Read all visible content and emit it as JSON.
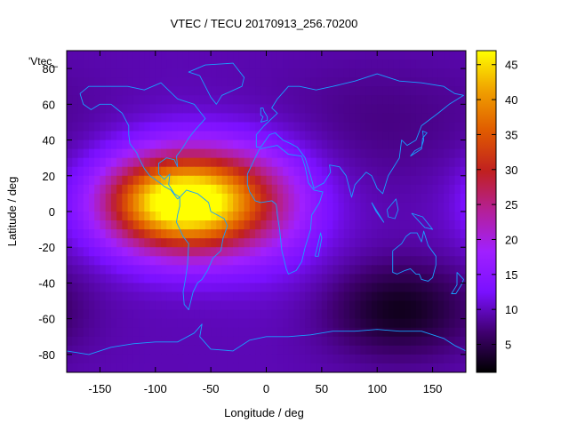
{
  "chart_data": {
    "type": "heatmap",
    "title": "VTEC / TECU 20170913_256.70200",
    "xlabel": "Longitude / deg",
    "ylabel": "Latitude / deg",
    "key_label": "'Vtec_",
    "xlim": [
      -180,
      180
    ],
    "ylim": [
      -90,
      90
    ],
    "x_ticks": [
      -150,
      -100,
      -50,
      0,
      50,
      100,
      150
    ],
    "y_ticks": [
      -80,
      -60,
      -40,
      -20,
      0,
      20,
      40,
      60,
      80
    ],
    "colorbar": {
      "min": 1,
      "max": 47,
      "ticks": [
        5,
        10,
        15,
        20,
        25,
        30,
        35,
        40,
        45
      ],
      "palette": [
        "#000000",
        "#400070",
        "#7a10ff",
        "#a020ff",
        "#b4209a",
        "#c02020",
        "#e05a00",
        "#f0a000",
        "#ffff00"
      ]
    },
    "grid": false,
    "z_field": {
      "background": 9.5,
      "sources": [
        {
          "lon": -70,
          "lat": 5,
          "amp": 36,
          "sigma_lon": 48,
          "sigma_lat": 20
        },
        {
          "lon": -110,
          "lat": 5,
          "amp": 8,
          "sigma_lon": 35,
          "sigma_lat": 16
        },
        {
          "lon": -20,
          "lat": 8,
          "amp": 6,
          "sigma_lon": 40,
          "sigma_lat": 20
        },
        {
          "lon": 15,
          "lat": 0,
          "amp": 3,
          "sigma_lon": 40,
          "sigma_lat": 30
        },
        {
          "lon": 120,
          "lat": -55,
          "amp": -7,
          "sigma_lon": 45,
          "sigma_lat": 18
        },
        {
          "lon": 100,
          "lat": 50,
          "amp": -2,
          "sigma_lon": 80,
          "sigma_lat": 25
        }
      ]
    },
    "coastlines": [
      {
        "name": "north-america",
        "lonlat": [
          [
            -168,
            66
          ],
          [
            -160,
            70
          ],
          [
            -140,
            70
          ],
          [
            -125,
            70
          ],
          [
            -110,
            68
          ],
          [
            -95,
            72
          ],
          [
            -80,
            63
          ],
          [
            -65,
            60
          ],
          [
            -55,
            52
          ],
          [
            -65,
            45
          ],
          [
            -70,
            41
          ],
          [
            -76,
            35
          ],
          [
            -81,
            31
          ],
          [
            -80,
            25
          ],
          [
            -83,
            29
          ],
          [
            -90,
            30
          ],
          [
            -97,
            27
          ],
          [
            -97,
            21
          ],
          [
            -92,
            18
          ],
          [
            -87,
            21
          ],
          [
            -88,
            15
          ],
          [
            -83,
            10
          ],
          [
            -78,
            8
          ],
          [
            -80,
            7
          ],
          [
            -86,
            12
          ],
          [
            -92,
            14
          ],
          [
            -96,
            16
          ],
          [
            -105,
            20
          ],
          [
            -110,
            24
          ],
          [
            -115,
            30
          ],
          [
            -117,
            33
          ],
          [
            -123,
            38
          ],
          [
            -124,
            43
          ],
          [
            -124,
            48
          ],
          [
            -130,
            55
          ],
          [
            -140,
            60
          ],
          [
            -150,
            60
          ],
          [
            -158,
            57
          ],
          [
            -165,
            60
          ],
          [
            -168,
            66
          ]
        ]
      },
      {
        "name": "greenland",
        "lonlat": [
          [
            -55,
            82
          ],
          [
            -30,
            83
          ],
          [
            -20,
            75
          ],
          [
            -22,
            70
          ],
          [
            -40,
            65
          ],
          [
            -45,
            60
          ],
          [
            -50,
            64
          ],
          [
            -55,
            70
          ],
          [
            -60,
            76
          ],
          [
            -70,
            78
          ],
          [
            -55,
            82
          ]
        ]
      },
      {
        "name": "south-america",
        "lonlat": [
          [
            -78,
            8
          ],
          [
            -72,
            12
          ],
          [
            -62,
            10
          ],
          [
            -52,
            5
          ],
          [
            -50,
            0
          ],
          [
            -38,
            -4
          ],
          [
            -35,
            -8
          ],
          [
            -39,
            -15
          ],
          [
            -41,
            -22
          ],
          [
            -48,
            -26
          ],
          [
            -53,
            -33
          ],
          [
            -58,
            -38
          ],
          [
            -62,
            -40
          ],
          [
            -66,
            -45
          ],
          [
            -68,
            -50
          ],
          [
            -70,
            -55
          ],
          [
            -74,
            -52
          ],
          [
            -75,
            -45
          ],
          [
            -73,
            -38
          ],
          [
            -71,
            -30
          ],
          [
            -70,
            -18
          ],
          [
            -75,
            -14
          ],
          [
            -81,
            -6
          ],
          [
            -80,
            -2
          ],
          [
            -78,
            3
          ],
          [
            -78,
            8
          ]
        ]
      },
      {
        "name": "eurasia",
        "lonlat": [
          [
            -9,
            36
          ],
          [
            -9,
            43
          ],
          [
            -2,
            48
          ],
          [
            5,
            52
          ],
          [
            10,
            55
          ],
          [
            5,
            58
          ],
          [
            10,
            63
          ],
          [
            20,
            70
          ],
          [
            30,
            70
          ],
          [
            45,
            68
          ],
          [
            60,
            70
          ],
          [
            80,
            73
          ],
          [
            100,
            77
          ],
          [
            120,
            73
          ],
          [
            140,
            72
          ],
          [
            160,
            70
          ],
          [
            170,
            66
          ],
          [
            178,
            65
          ],
          [
            165,
            60
          ],
          [
            155,
            55
          ],
          [
            140,
            48
          ],
          [
            135,
            40
          ],
          [
            127,
            37
          ],
          [
            122,
            40
          ],
          [
            120,
            30
          ],
          [
            110,
            20
          ],
          [
            105,
            10
          ],
          [
            100,
            13
          ],
          [
            98,
            16
          ],
          [
            95,
            20
          ],
          [
            90,
            22
          ],
          [
            80,
            15
          ],
          [
            77,
            8
          ],
          [
            72,
            20
          ],
          [
            66,
            25
          ],
          [
            57,
            26
          ],
          [
            58,
            22
          ],
          [
            52,
            16
          ],
          [
            43,
            13
          ],
          [
            40,
            20
          ],
          [
            35,
            30
          ],
          [
            28,
            36
          ],
          [
            22,
            38
          ],
          [
            15,
            40
          ],
          [
            8,
            44
          ],
          [
            3,
            43
          ],
          [
            -5,
            36
          ],
          [
            -9,
            36
          ]
        ]
      },
      {
        "name": "africa",
        "lonlat": [
          [
            -17,
            21
          ],
          [
            -10,
            30
          ],
          [
            -6,
            35
          ],
          [
            10,
            37
          ],
          [
            20,
            32
          ],
          [
            32,
            31
          ],
          [
            35,
            25
          ],
          [
            38,
            16
          ],
          [
            43,
            12
          ],
          [
            51,
            11
          ],
          [
            48,
            5
          ],
          [
            41,
            -2
          ],
          [
            40,
            -10
          ],
          [
            35,
            -20
          ],
          [
            32,
            -28
          ],
          [
            27,
            -33
          ],
          [
            20,
            -35
          ],
          [
            18,
            -32
          ],
          [
            14,
            -22
          ],
          [
            12,
            -10
          ],
          [
            10,
            -2
          ],
          [
            9,
            4
          ],
          [
            5,
            6
          ],
          [
            -5,
            5
          ],
          [
            -10,
            6
          ],
          [
            -15,
            11
          ],
          [
            -17,
            15
          ],
          [
            -17,
            21
          ]
        ]
      },
      {
        "name": "madagascar",
        "lonlat": [
          [
            44,
            -25
          ],
          [
            49,
            -12
          ],
          [
            50,
            -15
          ],
          [
            47,
            -25
          ],
          [
            44,
            -25
          ]
        ]
      },
      {
        "name": "australia",
        "lonlat": [
          [
            114,
            -22
          ],
          [
            114,
            -34
          ],
          [
            118,
            -35
          ],
          [
            125,
            -33
          ],
          [
            130,
            -32
          ],
          [
            135,
            -35
          ],
          [
            138,
            -35
          ],
          [
            140,
            -38
          ],
          [
            146,
            -39
          ],
          [
            150,
            -37
          ],
          [
            153,
            -30
          ],
          [
            153,
            -25
          ],
          [
            146,
            -19
          ],
          [
            142,
            -11
          ],
          [
            140,
            -17
          ],
          [
            136,
            -12
          ],
          [
            130,
            -12
          ],
          [
            126,
            -14
          ],
          [
            122,
            -18
          ],
          [
            114,
            -22
          ]
        ]
      },
      {
        "name": "new-zealand",
        "lonlat": [
          [
            172,
            -34
          ],
          [
            178,
            -38
          ],
          [
            176,
            -41
          ],
          [
            171,
            -46
          ],
          [
            167,
            -46
          ],
          [
            172,
            -41
          ],
          [
            172,
            -34
          ]
        ]
      },
      {
        "name": "japan",
        "lonlat": [
          [
            130,
            31
          ],
          [
            134,
            34
          ],
          [
            140,
            36
          ],
          [
            142,
            40
          ],
          [
            141,
            45
          ],
          [
            145,
            44
          ],
          [
            141,
            41
          ],
          [
            140,
            35
          ],
          [
            135,
            33
          ],
          [
            130,
            31
          ]
        ]
      },
      {
        "name": "uk",
        "lonlat": [
          [
            -5,
            50
          ],
          [
            1,
            51
          ],
          [
            1,
            53
          ],
          [
            -2,
            56
          ],
          [
            -3,
            58
          ],
          [
            -5,
            58
          ],
          [
            -5,
            54
          ],
          [
            -3,
            53
          ],
          [
            -5,
            50
          ]
        ]
      },
      {
        "name": "sumatra-borneo",
        "lonlat": [
          [
            95,
            5
          ],
          [
            105,
            -5
          ],
          [
            106,
            -6
          ],
          [
            99,
            0
          ],
          [
            95,
            5
          ]
        ]
      },
      {
        "name": "borneo",
        "lonlat": [
          [
            109,
            1
          ],
          [
            117,
            7
          ],
          [
            119,
            1
          ],
          [
            116,
            -4
          ],
          [
            110,
            -3
          ],
          [
            109,
            1
          ]
        ]
      },
      {
        "name": "new-guinea",
        "lonlat": [
          [
            131,
            -1
          ],
          [
            141,
            -3
          ],
          [
            150,
            -10
          ],
          [
            143,
            -9
          ],
          [
            137,
            -5
          ],
          [
            131,
            -1
          ]
        ]
      },
      {
        "name": "antarctica",
        "lonlat": [
          [
            -180,
            -78
          ],
          [
            -160,
            -80
          ],
          [
            -140,
            -76
          ],
          [
            -120,
            -74
          ],
          [
            -100,
            -73
          ],
          [
            -80,
            -73
          ],
          [
            -65,
            -68
          ],
          [
            -58,
            -63
          ],
          [
            -60,
            -70
          ],
          [
            -50,
            -77
          ],
          [
            -30,
            -78
          ],
          [
            -15,
            -72
          ],
          [
            0,
            -70
          ],
          [
            20,
            -70
          ],
          [
            40,
            -69
          ],
          [
            60,
            -67
          ],
          [
            80,
            -67
          ],
          [
            100,
            -66
          ],
          [
            120,
            -67
          ],
          [
            140,
            -67
          ],
          [
            160,
            -71
          ],
          [
            170,
            -75
          ],
          [
            180,
            -78
          ]
        ]
      }
    ]
  }
}
